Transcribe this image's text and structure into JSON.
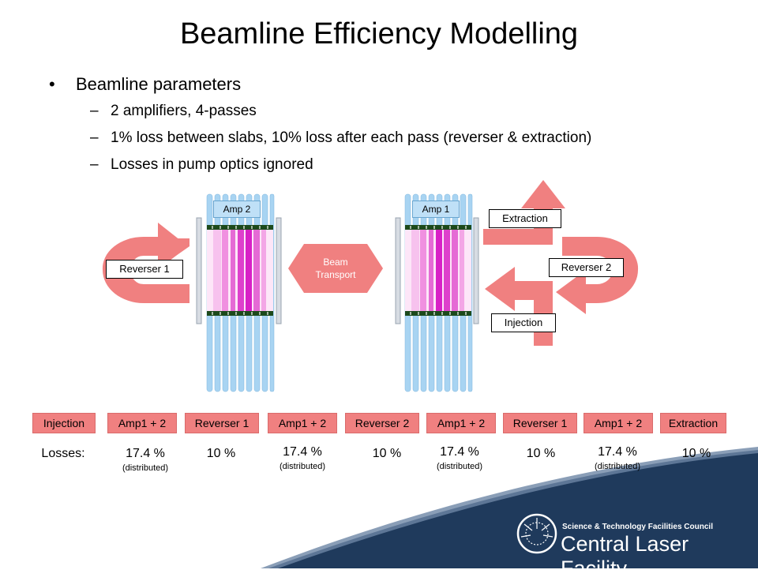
{
  "title": "Beamline Efficiency Modelling",
  "bullets": {
    "main": "Beamline parameters",
    "subs": [
      "2 amplifiers, 4-passes",
      "1% loss between slabs, 10% loss after each pass (reverser & extraction)",
      "Losses in pump optics ignored"
    ]
  },
  "diagram": {
    "amp2_label": "Amp 2",
    "amp1_label": "Amp 1",
    "reverser1_label": "Reverser 1",
    "reverser2_label": "Reverser 2",
    "beam_transport": [
      "Beam",
      "Transport"
    ],
    "extraction_label": "Extraction",
    "injection_label": "Injection"
  },
  "sequence": [
    "Injection",
    "Amp1 + 2",
    "Reverser 1",
    "Amp1 + 2",
    "Reverser 2",
    "Amp1 + 2",
    "Reverser 1",
    "Amp1 + 2",
    "Extraction"
  ],
  "losses": {
    "label": "Losses:",
    "values": [
      "17.4 %",
      "10 %",
      "17.4 %",
      "10 %",
      "17.4 %",
      "10 %",
      "17.4 %",
      "10 %"
    ],
    "note": "(distributed)"
  },
  "footer": {
    "council": "Science & Technology Facilities Council",
    "facility": "Central Laser Facility"
  },
  "colors": {
    "arrow": "#f08080",
    "rod": "#a8d4f2",
    "pink_light": "#f6c6ee",
    "magenta": "#e020c8",
    "footer_navy": "#1f3a5c"
  }
}
